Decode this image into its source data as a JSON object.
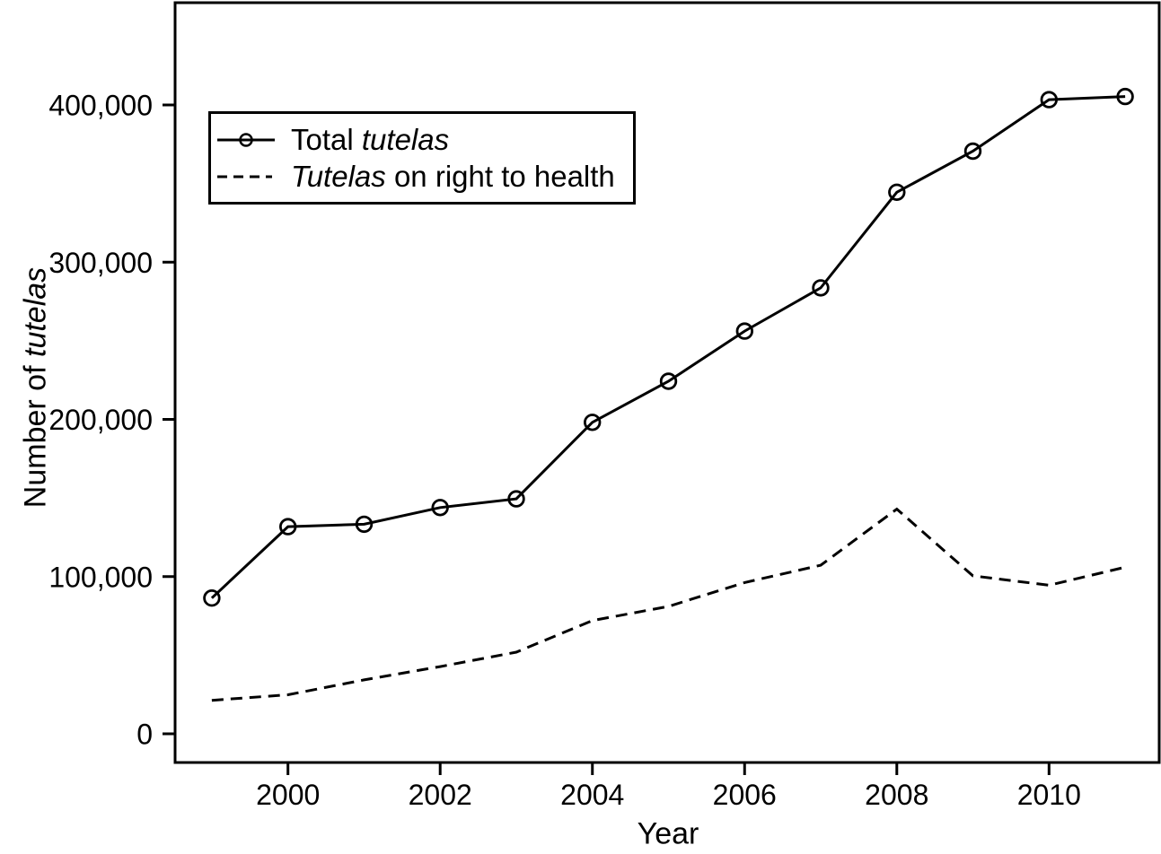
{
  "chart_data": {
    "type": "line",
    "title": "",
    "xlabel": "Year",
    "ylabel": "Number of tutelas",
    "ylabel_parts": [
      {
        "text": "Number of ",
        "italic": false
      },
      {
        "text": "tutelas",
        "italic": true
      }
    ],
    "x": [
      1999,
      2000,
      2001,
      2002,
      2003,
      2004,
      2005,
      2006,
      2007,
      2008,
      2009,
      2010,
      2011
    ],
    "series": [
      {
        "name": "Total tutelas",
        "name_parts": [
          {
            "text": "Total ",
            "italic": false
          },
          {
            "text": "tutelas",
            "italic": true
          }
        ],
        "line_style": "solid",
        "marker": "circle",
        "values": [
          86313,
          131764,
          133272,
          143887,
          149439,
          198125,
          224270,
          256166,
          283637,
          344468,
          370640,
          403380,
          405359
        ]
      },
      {
        "name": "Tutelas on right to health",
        "name_parts": [
          {
            "text": "Tutelas",
            "italic": true
          },
          {
            "text": " on right to health",
            "italic": false
          }
        ],
        "line_style": "dashed",
        "marker": "none",
        "values": [
          21301,
          24843,
          34319,
          42734,
          51944,
          72033,
          81017,
          96226,
          107238,
          142957,
          100490,
          94502,
          105947
        ]
      }
    ],
    "xticks": [
      2000,
      2002,
      2004,
      2006,
      2008,
      2010
    ],
    "xtick_labels": [
      "2000",
      "2002",
      "2004",
      "2006",
      "2008",
      "2010"
    ],
    "yticks": [
      0,
      100000,
      200000,
      300000,
      400000
    ],
    "ytick_labels": [
      "0",
      "100,000",
      "200,000",
      "300,000",
      "400,000"
    ],
    "xlim": [
      1998.5,
      2011.5
    ],
    "ylim": [
      0,
      465000
    ],
    "grid": false,
    "legend_position": "upper-left-inside",
    "colors": {
      "line": "#000000",
      "background": "#ffffff"
    }
  }
}
